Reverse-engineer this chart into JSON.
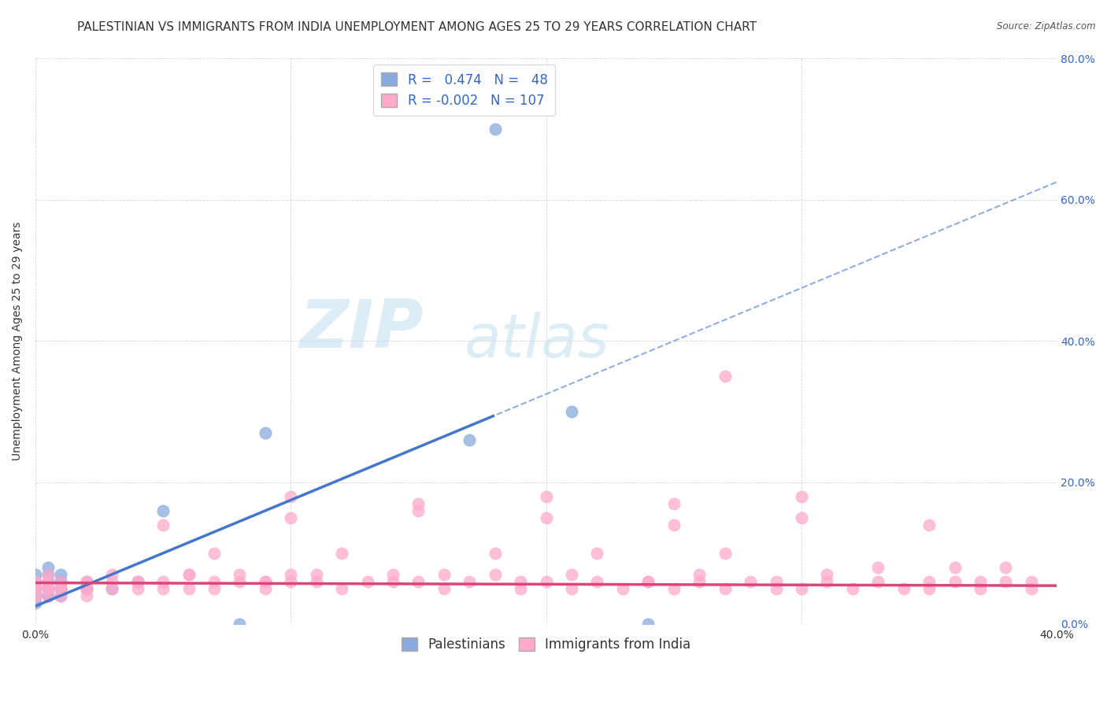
{
  "title": "PALESTINIAN VS IMMIGRANTS FROM INDIA UNEMPLOYMENT AMONG AGES 25 TO 29 YEARS CORRELATION CHART",
  "source": "Source: ZipAtlas.com",
  "ylabel": "Unemployment Among Ages 25 to 29 years",
  "xlim": [
    0.0,
    0.4
  ],
  "ylim": [
    0.0,
    0.8
  ],
  "xticks": [
    0.0,
    0.1,
    0.2,
    0.3,
    0.4
  ],
  "yticks": [
    0.0,
    0.2,
    0.4,
    0.6,
    0.8
  ],
  "right_ytick_labels": [
    "0.0%",
    "20.0%",
    "40.0%",
    "60.0%",
    "80.0%"
  ],
  "bottom_xtick_labels": [
    "0.0%",
    "",
    "",
    "",
    "40.0%"
  ],
  "color_blue": "#88AADD",
  "color_pink": "#FFAACC",
  "blue_line_color": "#4477CC",
  "pink_line_color": "#DD4477",
  "watermark_color": "#BBDDEE",
  "title_fontsize": 11,
  "axis_fontsize": 10,
  "tick_fontsize": 10,
  "legend_fontsize": 12,
  "palestinians_x": [
    0.0,
    0.0,
    0.0,
    0.0,
    0.0,
    0.0,
    0.0,
    0.0,
    0.0,
    0.0,
    0.005,
    0.005,
    0.005,
    0.005,
    0.005,
    0.005,
    0.005,
    0.005,
    0.01,
    0.01,
    0.01,
    0.01,
    0.01,
    0.01,
    0.02,
    0.02,
    0.02,
    0.03,
    0.04,
    0.05,
    0.08,
    0.09,
    0.17,
    0.18,
    0.21,
    0.24,
    0.0,
    0.0,
    0.0,
    0.01,
    0.01,
    0.0,
    0.0,
    0.01,
    0.0,
    0.0,
    0.0,
    0.0
  ],
  "palestinians_y": [
    0.04,
    0.04,
    0.05,
    0.05,
    0.06,
    0.06,
    0.07,
    0.03,
    0.04,
    0.05,
    0.04,
    0.05,
    0.06,
    0.07,
    0.08,
    0.05,
    0.04,
    0.05,
    0.04,
    0.05,
    0.06,
    0.05,
    0.06,
    0.07,
    0.05,
    0.06,
    0.05,
    0.05,
    0.06,
    0.16,
    0.0,
    0.27,
    0.26,
    0.7,
    0.3,
    0.0,
    0.04,
    0.04,
    0.04,
    0.06,
    0.06,
    0.04,
    0.04,
    0.05,
    0.04,
    0.04,
    0.04,
    0.04
  ],
  "india_x": [
    0.0,
    0.0,
    0.0,
    0.0,
    0.0,
    0.0,
    0.0,
    0.005,
    0.005,
    0.005,
    0.005,
    0.005,
    0.01,
    0.01,
    0.01,
    0.01,
    0.02,
    0.02,
    0.02,
    0.02,
    0.02,
    0.03,
    0.03,
    0.03,
    0.04,
    0.04,
    0.05,
    0.05,
    0.06,
    0.06,
    0.07,
    0.07,
    0.08,
    0.08,
    0.09,
    0.09,
    0.1,
    0.1,
    0.11,
    0.12,
    0.13,
    0.14,
    0.15,
    0.16,
    0.17,
    0.18,
    0.19,
    0.2,
    0.21,
    0.22,
    0.23,
    0.24,
    0.25,
    0.26,
    0.27,
    0.28,
    0.29,
    0.3,
    0.31,
    0.32,
    0.33,
    0.34,
    0.35,
    0.36,
    0.37,
    0.38,
    0.39,
    0.1,
    0.15,
    0.2,
    0.25,
    0.3,
    0.05,
    0.1,
    0.15,
    0.2,
    0.25,
    0.3,
    0.35,
    0.07,
    0.12,
    0.18,
    0.22,
    0.27,
    0.33,
    0.36,
    0.38,
    0.06,
    0.11,
    0.16,
    0.21,
    0.26,
    0.31,
    0.04,
    0.09,
    0.14,
    0.19,
    0.24,
    0.29,
    0.35,
    0.37,
    0.39,
    0.27
  ],
  "india_y": [
    0.04,
    0.05,
    0.05,
    0.06,
    0.06,
    0.05,
    0.04,
    0.04,
    0.05,
    0.06,
    0.07,
    0.05,
    0.04,
    0.05,
    0.06,
    0.05,
    0.04,
    0.05,
    0.06,
    0.05,
    0.06,
    0.06,
    0.05,
    0.07,
    0.05,
    0.06,
    0.05,
    0.06,
    0.05,
    0.07,
    0.06,
    0.05,
    0.06,
    0.07,
    0.06,
    0.05,
    0.06,
    0.07,
    0.06,
    0.05,
    0.06,
    0.07,
    0.06,
    0.05,
    0.06,
    0.07,
    0.05,
    0.06,
    0.05,
    0.06,
    0.05,
    0.06,
    0.05,
    0.06,
    0.05,
    0.06,
    0.05,
    0.05,
    0.06,
    0.05,
    0.06,
    0.05,
    0.05,
    0.06,
    0.05,
    0.06,
    0.05,
    0.18,
    0.17,
    0.18,
    0.17,
    0.18,
    0.14,
    0.15,
    0.16,
    0.15,
    0.14,
    0.15,
    0.14,
    0.1,
    0.1,
    0.1,
    0.1,
    0.1,
    0.08,
    0.08,
    0.08,
    0.07,
    0.07,
    0.07,
    0.07,
    0.07,
    0.07,
    0.06,
    0.06,
    0.06,
    0.06,
    0.06,
    0.06,
    0.06,
    0.06,
    0.06,
    0.35
  ]
}
